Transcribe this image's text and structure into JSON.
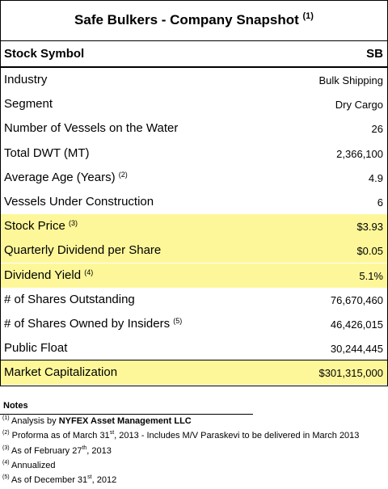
{
  "title": "Safe Bulkers - Company Snapshot",
  "title_note": "(1)",
  "header": {
    "label": "Stock Symbol",
    "value": "SB"
  },
  "rows": [
    {
      "label": "Industry",
      "value": "Bulk Shipping"
    },
    {
      "label": "Segment",
      "value": "Dry Cargo"
    },
    {
      "label": "Number of Vessels on the Water",
      "value": "26"
    },
    {
      "label": "Total DWT (MT)",
      "value": "2,366,100"
    },
    {
      "label": "Average Age (Years)",
      "note": "(2)",
      "value": "4.9"
    },
    {
      "label": "Vessels Under Construction",
      "value": "6"
    },
    {
      "label": "Stock Price",
      "note": "(3)",
      "value": "$3.93",
      "highlight": true
    },
    {
      "label": "Quarterly Dividend per Share",
      "value": "$0.05",
      "highlight": true
    },
    {
      "label": "Dividend Yield",
      "note": "(4)",
      "value": "5.1%",
      "highlight": true
    },
    {
      "label": "# of Shares Outstanding",
      "value": "76,670,460"
    },
    {
      "label": "# of Shares Owned by Insiders",
      "note": "(5)",
      "value": "46,426,015"
    },
    {
      "label": "Public Float",
      "value": "30,244,445"
    },
    {
      "label": "Market Capitalization",
      "value": "$301,315,000",
      "highlight": true,
      "boxed": true
    }
  ],
  "notes": {
    "title": "Notes",
    "items": [
      {
        "marker": "(1)",
        "parts": [
          {
            "t": "Analysis by "
          },
          {
            "b": "NYFEX Asset Management LLC"
          }
        ]
      },
      {
        "marker": "(2)",
        "parts": [
          {
            "t": "Proforma as of March 31"
          },
          {
            "sup": "st"
          },
          {
            "t": ", 2013 - Includes M/V Paraskevi to be delivered in March 2013"
          }
        ]
      },
      {
        "marker": "(3)",
        "parts": [
          {
            "t": "As of February 27"
          },
          {
            "sup": "th"
          },
          {
            "t": ", 2013"
          }
        ]
      },
      {
        "marker": "(4)",
        "parts": [
          {
            "t": "Annualized"
          }
        ]
      },
      {
        "marker": "(5)",
        "parts": [
          {
            "t": "As of December 31"
          },
          {
            "sup": "st"
          },
          {
            "t": ", 2012"
          }
        ]
      }
    ]
  }
}
